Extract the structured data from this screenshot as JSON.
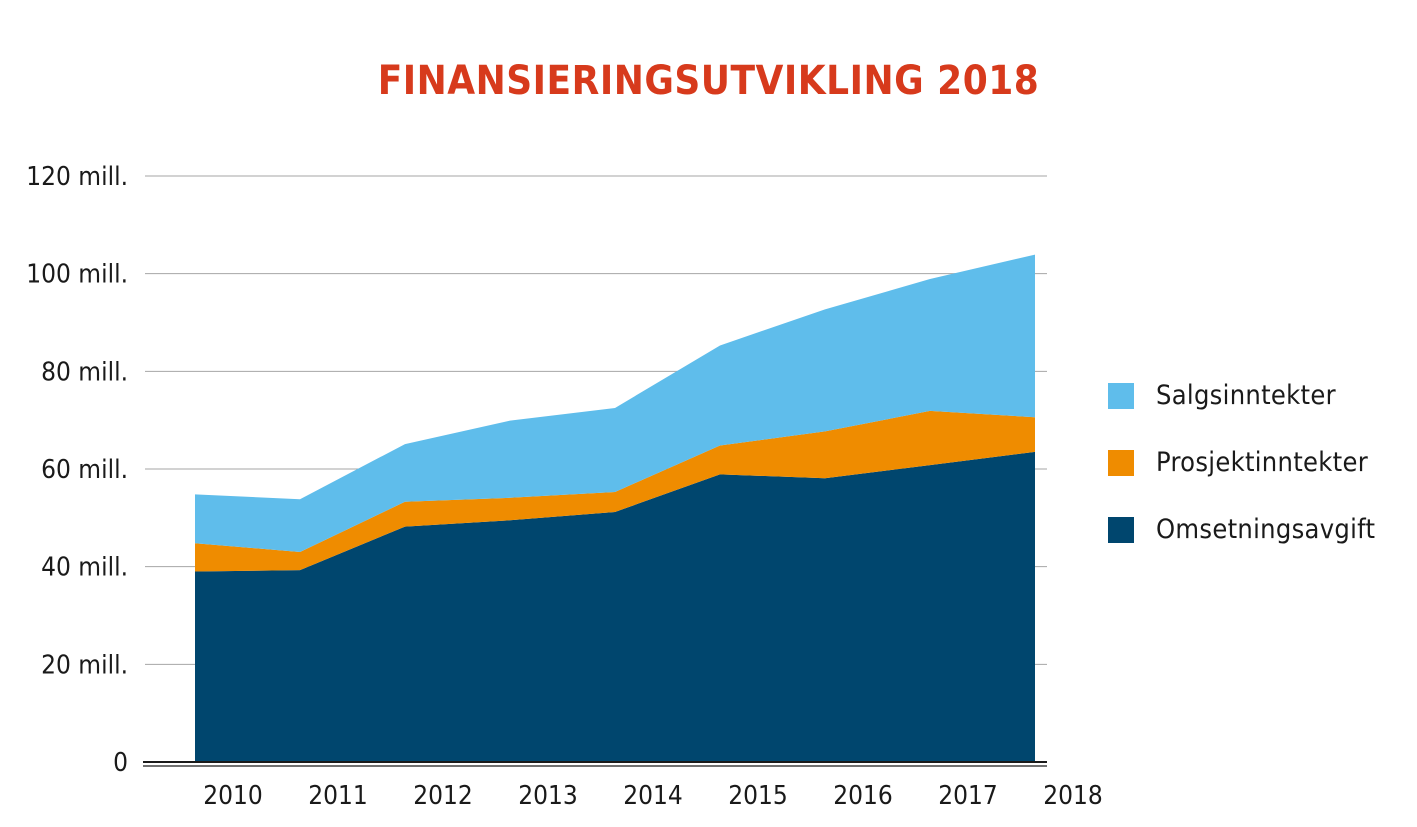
{
  "chart_data": {
    "type": "area",
    "stacked": true,
    "title": "FINANSIERINGSUTVIKLING 2018",
    "xlabel": "",
    "ylabel": "",
    "categories": [
      "2010",
      "2011",
      "2012",
      "2013",
      "2014",
      "2015",
      "2016",
      "2017",
      "2018"
    ],
    "ylim": [
      0,
      120
    ],
    "yticks": [
      0,
      20,
      40,
      60,
      80,
      100,
      120
    ],
    "ytick_labels": [
      "0",
      "20 mill.",
      "40 mill.",
      "60 mill.",
      "80 mill.",
      "100 mill.",
      "120 mill."
    ],
    "grid": true,
    "legend_position": "right",
    "series": [
      {
        "name": "Omsetningsavgift",
        "color": "#00466e",
        "values": [
          39.0,
          39.3,
          48.2,
          49.5,
          51.2,
          58.9,
          58.1,
          60.8,
          63.5
        ]
      },
      {
        "name": "Prosjektinntekter",
        "color": "#ef8c00",
        "values": [
          5.8,
          3.7,
          5.1,
          4.6,
          4.1,
          5.9,
          9.6,
          11.1,
          7.1
        ]
      },
      {
        "name": "Salgsinntekter",
        "color": "#5fbdeb",
        "values": [
          10.0,
          10.8,
          11.8,
          15.8,
          17.2,
          20.5,
          25.0,
          27.0,
          33.3
        ]
      }
    ]
  },
  "legend": [
    {
      "label": "Salgsinntekter",
      "color": "#5fbdeb"
    },
    {
      "label": "Prosjektinntekter",
      "color": "#ef8c00"
    },
    {
      "label": "Omsetningsavgift",
      "color": "#00466e"
    }
  ]
}
